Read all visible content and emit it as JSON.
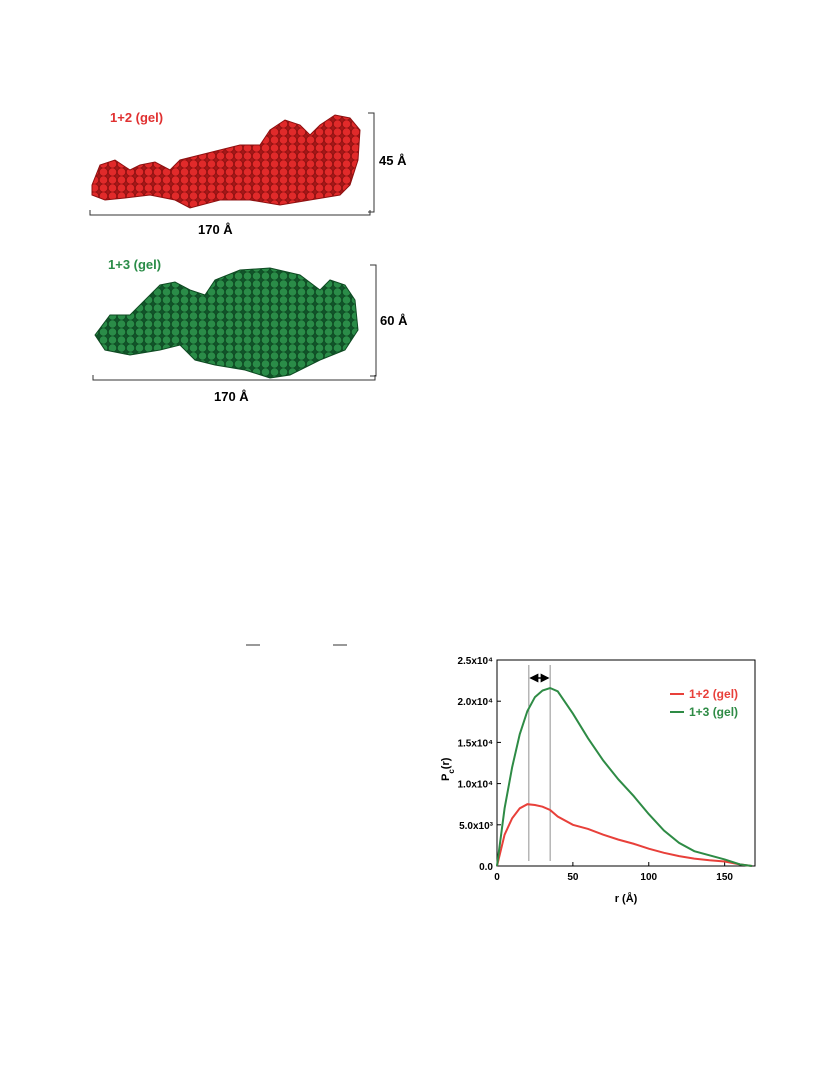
{
  "figures": [
    {
      "label": "1+2 (gel)",
      "height": "45 Å",
      "width": "170 Å"
    },
    {
      "label": "1+3 (gel)",
      "height": "60 Å",
      "width": "170 Å"
    }
  ],
  "chart_data": {
    "type": "line",
    "x_label": "r (Å)",
    "y_label": "P",
    "y_label_sub": "c",
    "y_label_tail": "(r)",
    "x": [
      0,
      5,
      10,
      15,
      20,
      25,
      30,
      35,
      40,
      50,
      60,
      70,
      80,
      90,
      100,
      110,
      120,
      130,
      140,
      150,
      160,
      168
    ],
    "series": [
      {
        "name": "1+2 (gel)",
        "color": "#e8403a",
        "values": [
          0,
          3800,
          5800,
          7000,
          7500,
          7400,
          7200,
          6800,
          6000,
          5000,
          4500,
          3800,
          3200,
          2700,
          2100,
          1600,
          1200,
          900,
          700,
          550,
          200,
          0
        ]
      },
      {
        "name": "1+3 (gel)",
        "color": "#2e8b45",
        "values": [
          0,
          7000,
          12000,
          16000,
          18800,
          20500,
          21300,
          21600,
          21200,
          18500,
          15500,
          12800,
          10500,
          8500,
          6300,
          4300,
          2800,
          1800,
          1300,
          800,
          200,
          0
        ]
      }
    ],
    "vlines": [
      21,
      35
    ],
    "xlim": [
      0,
      170
    ],
    "ylim": [
      0,
      25000
    ],
    "xticks": [
      0,
      50,
      100,
      150
    ],
    "yticks": [
      {
        "value": 0,
        "label": "0.0"
      },
      {
        "value": 5000,
        "label": "5.0x10³"
      },
      {
        "value": 10000,
        "label": "1.0x10⁴"
      },
      {
        "value": 15000,
        "label": "1.5x10⁴"
      },
      {
        "value": 20000,
        "label": "2.0x10⁴"
      },
      {
        "value": 25000,
        "label": "2.5x10⁴"
      }
    ],
    "legend": "upper-right"
  }
}
